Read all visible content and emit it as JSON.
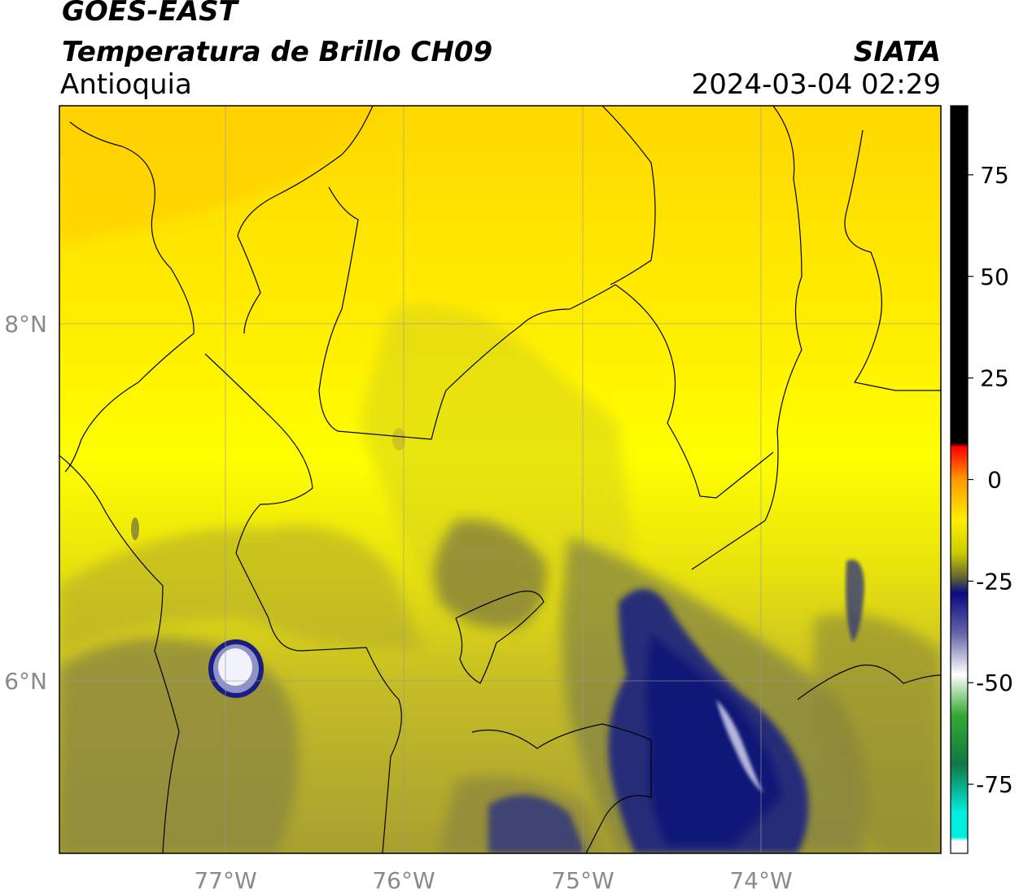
{
  "header": {
    "satellite": "GOES-EAST",
    "product": "Temperatura de Brillo CH09",
    "region": "Antioquia",
    "agency": "SIATA",
    "datetime": "2024-03-04 02:29"
  },
  "map": {
    "lon_range": [
      -77.98,
      -73.05
    ],
    "lat_range": [
      4.95,
      9.15
    ],
    "lon_ticks": [
      "77°W",
      "76°W",
      "75°W",
      "74°W"
    ],
    "lat_ticks": [
      "8°N",
      "6°N"
    ],
    "grid": true
  },
  "colorbar": {
    "range": [
      -92,
      92
    ],
    "tick_values": [
      75,
      50,
      25,
      0,
      -25,
      -50,
      -75
    ],
    "tick_labels": [
      "75",
      "50",
      "25",
      "0",
      "-25",
      "-50",
      "-75"
    ],
    "stops": [
      {
        "value": 92,
        "color": "#000000"
      },
      {
        "value": 9,
        "color": "#000000"
      },
      {
        "value": 8,
        "color": "#ff0000"
      },
      {
        "value": 0,
        "color": "#ff9900"
      },
      {
        "value": -10,
        "color": "#ffee00"
      },
      {
        "value": -18,
        "color": "#cccc00"
      },
      {
        "value": -24,
        "color": "#666633"
      },
      {
        "value": -28,
        "color": "#0a0a80"
      },
      {
        "value": -38,
        "color": "#6666aa"
      },
      {
        "value": -48,
        "color": "#ffffff"
      },
      {
        "value": -58,
        "color": "#33aa33"
      },
      {
        "value": -70,
        "color": "#117744"
      },
      {
        "value": -82,
        "color": "#00eedd"
      },
      {
        "value": -88,
        "color": "#00eedd"
      },
      {
        "value": -89,
        "color": "#ffffff"
      },
      {
        "value": -92,
        "color": "#ffffff"
      }
    ]
  },
  "colors": {
    "north_yellow": "#ffe000",
    "mid_yellow": "#f2ee08",
    "olive": "#b8b22a",
    "dark_olive": "#7c7c40",
    "navy": "#101880",
    "cloud_white": "#f2f2fa"
  }
}
